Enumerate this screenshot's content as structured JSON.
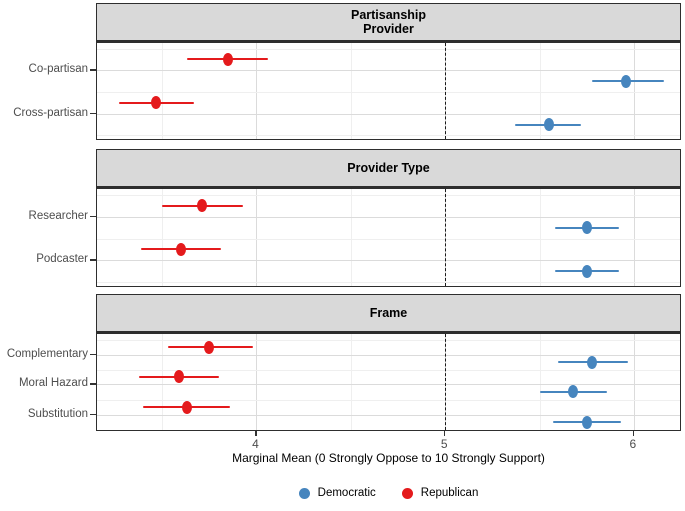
{
  "chart_data": {
    "type": "scatter",
    "subtype": "dot-whisker-forest",
    "title": "",
    "xlabel": "Marginal Mean (0 Strongly Oppose to 10 Strongly Support)",
    "ylabel": "",
    "xlim": [
      3.15,
      6.25
    ],
    "xticks": [
      4,
      5,
      6
    ],
    "x_minor_ticks": [
      3.5,
      4.5,
      5.5
    ],
    "reference_line_x": 5,
    "grid": true,
    "legend_position": "bottom",
    "legend": [
      {
        "name": "Democratic",
        "color": "#4685BE"
      },
      {
        "name": "Republican",
        "color": "#E41A1C"
      }
    ],
    "panels": [
      {
        "title_lines": [
          "Partisanship",
          "Provider"
        ],
        "rows": [
          {
            "label": "Co-partisan",
            "points": [
              {
                "party": "Republican",
                "mean": 3.85,
                "ci_low": 3.63,
                "ci_high": 4.06
              },
              {
                "party": "Democratic",
                "mean": 5.96,
                "ci_low": 5.78,
                "ci_high": 6.16
              }
            ]
          },
          {
            "label": "Cross-partisan",
            "points": [
              {
                "party": "Republican",
                "mean": 3.47,
                "ci_low": 3.27,
                "ci_high": 3.67
              },
              {
                "party": "Democratic",
                "mean": 5.55,
                "ci_low": 5.37,
                "ci_high": 5.72
              }
            ]
          }
        ]
      },
      {
        "title_lines": [
          "Provider Type"
        ],
        "rows": [
          {
            "label": "Researcher",
            "points": [
              {
                "party": "Republican",
                "mean": 3.71,
                "ci_low": 3.5,
                "ci_high": 3.93
              },
              {
                "party": "Democratic",
                "mean": 5.75,
                "ci_low": 5.58,
                "ci_high": 5.92
              }
            ]
          },
          {
            "label": "Podcaster",
            "points": [
              {
                "party": "Republican",
                "mean": 3.6,
                "ci_low": 3.39,
                "ci_high": 3.81
              },
              {
                "party": "Democratic",
                "mean": 5.75,
                "ci_low": 5.58,
                "ci_high": 5.92
              }
            ]
          }
        ]
      },
      {
        "title_lines": [
          "Frame"
        ],
        "rows": [
          {
            "label": "Complementary",
            "points": [
              {
                "party": "Republican",
                "mean": 3.75,
                "ci_low": 3.53,
                "ci_high": 3.98
              },
              {
                "party": "Democratic",
                "mean": 5.78,
                "ci_low": 5.6,
                "ci_high": 5.97
              }
            ]
          },
          {
            "label": "Moral Hazard",
            "points": [
              {
                "party": "Republican",
                "mean": 3.59,
                "ci_low": 3.38,
                "ci_high": 3.8
              },
              {
                "party": "Democratic",
                "mean": 5.68,
                "ci_low": 5.5,
                "ci_high": 5.86
              }
            ]
          },
          {
            "label": "Substitution",
            "points": [
              {
                "party": "Republican",
                "mean": 3.63,
                "ci_low": 3.4,
                "ci_high": 3.86
              },
              {
                "party": "Democratic",
                "mean": 5.75,
                "ci_low": 5.57,
                "ci_high": 5.93
              }
            ]
          }
        ]
      }
    ]
  }
}
